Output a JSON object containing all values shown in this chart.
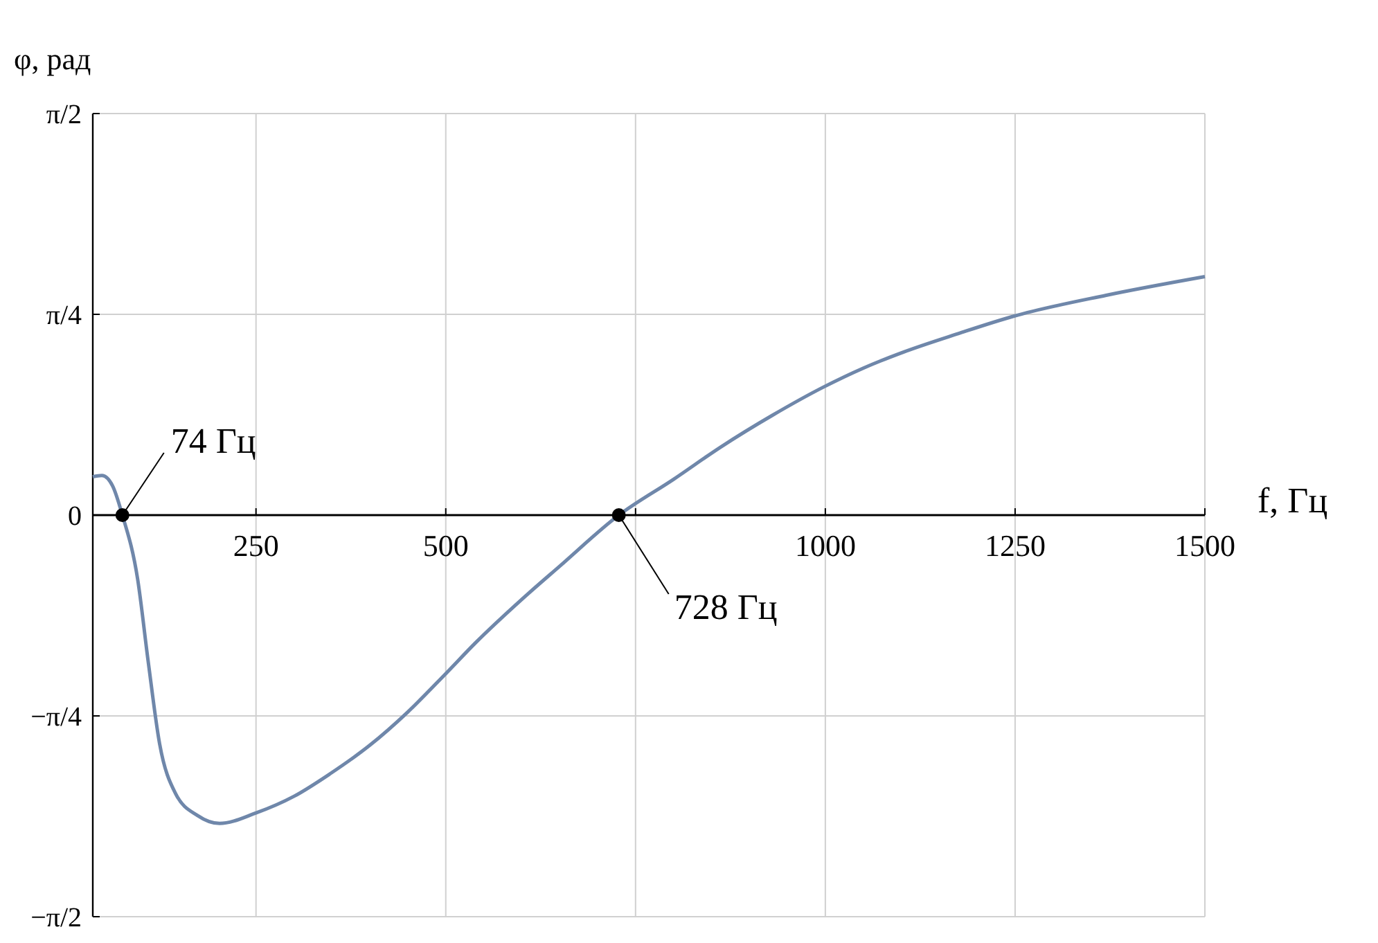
{
  "chart_data": {
    "type": "line",
    "xlabel": "f, Гц",
    "ylabel": "φ, рад",
    "xlim": [
      35,
      1500
    ],
    "ylim": [
      -1.5708,
      1.5708
    ],
    "xticks": [
      250,
      500,
      {
        "value": 750,
        "label": null
      },
      1000,
      1250,
      1500
    ],
    "yticks": [
      {
        "value": -1.5708,
        "label": "−π/2"
      },
      {
        "value": -0.7854,
        "label": "−π/4"
      },
      0,
      {
        "value": 0.7854,
        "label": "π/4"
      },
      {
        "value": 1.5708,
        "label": "π/2"
      }
    ],
    "grid": true,
    "marker": "none",
    "line_style": "solid",
    "series": [
      {
        "color": "#6f87aa",
        "x": [
          35,
          47,
          61,
          74,
          94,
          108,
          123,
          144,
          173,
          202,
          250,
          300,
          347,
          400,
          450,
          500,
          539,
          600,
          650,
          728,
          800,
          862,
          930,
          997,
          1050,
          1104,
          1175,
          1248,
          1370,
          1500
        ],
        "values": [
          0.15,
          0.155,
          0.115,
          0,
          -0.249,
          -0.573,
          -0.894,
          -1.089,
          -1.175,
          -1.206,
          -1.165,
          -1.1,
          -1.013,
          -0.9,
          -0.77,
          -0.62,
          -0.5,
          -0.33,
          -0.2,
          0,
          0.14,
          0.266,
          0.39,
          0.5,
          0.575,
          0.639,
          0.71,
          0.778,
          0.86,
          0.933
        ]
      }
    ],
    "annotations": [
      {
        "text": "74 Гц",
        "x": 74,
        "y": 0
      },
      {
        "text": "728 Гц",
        "x": 728,
        "y": 0
      }
    ]
  }
}
